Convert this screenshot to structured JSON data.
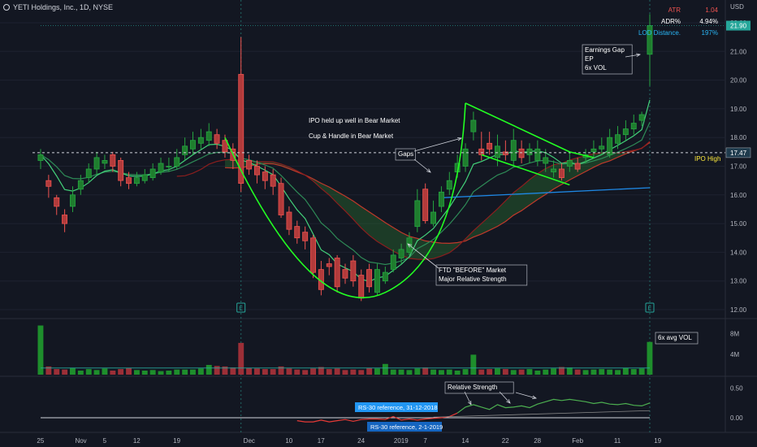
{
  "header": {
    "symbol": "YETI Holdings, Inc., 1D, NYSE"
  },
  "currency": "USD",
  "stats": [
    {
      "label": "ATR",
      "value": "1.04",
      "color": "#ef5350"
    },
    {
      "label": "ADR%",
      "value": "4.94%",
      "color": "#ffffff"
    },
    {
      "label": "LOD Distance.",
      "value": "197%",
      "color": "#29b6f6"
    }
  ],
  "colors": {
    "background": "#131722",
    "up": "#26a641",
    "down": "#ef5350",
    "upBody": "#1f7d2e",
    "downBody": "#b23b3b",
    "grid": "#1e2230",
    "text": "#b2b5be",
    "annotationBorder": "#b2b5be",
    "green": "#22ff22",
    "blue": "#29b6f6"
  },
  "chart_data": [
    {
      "type": "candlestick",
      "title": "YETI Holdings, Inc., 1D, NYSE",
      "x": [
        "Oct 25",
        "Oct 26",
        "Oct 29",
        "Oct 30",
        "Oct 31",
        "Nov 1",
        "Nov 2",
        "Nov 5",
        "Nov 6",
        "Nov 7",
        "Nov 8",
        "Nov 9",
        "Nov 12",
        "Nov 13",
        "Nov 14",
        "Nov 15",
        "Nov 16",
        "Nov 19",
        "Nov 20",
        "Nov 21",
        "Nov 23",
        "Nov 26",
        "Nov 27",
        "Nov 28",
        "Nov 29",
        "Nov 30",
        "Dec 3",
        "Dec 4",
        "Dec 6",
        "Dec 7",
        "Dec 10",
        "Dec 11",
        "Dec 12",
        "Dec 13",
        "Dec 14",
        "Dec 17",
        "Dec 18",
        "Dec 19",
        "Dec 20",
        "Dec 21",
        "Dec 24",
        "Dec 26",
        "Dec 27",
        "Dec 28",
        "Dec 31",
        "Jan 2",
        "Jan 3",
        "Jan 4",
        "Jan 7",
        "Jan 8",
        "Jan 9",
        "Jan 10",
        "Jan 11",
        "Jan 14",
        "Jan 15",
        "Jan 16",
        "Jan 17",
        "Jan 18",
        "Jan 22",
        "Jan 23",
        "Jan 24",
        "Jan 25",
        "Jan 28",
        "Jan 29",
        "Jan 30",
        "Jan 31",
        "Feb 1",
        "Feb 4",
        "Feb 5",
        "Feb 6",
        "Feb 7",
        "Feb 8",
        "Feb 11",
        "Feb 12",
        "Feb 13",
        "Feb 14",
        "Feb 15"
      ],
      "open": [
        17.2,
        16.5,
        15.9,
        15.3,
        15.6,
        16.2,
        16.6,
        16.9,
        17.1,
        17.4,
        17.2,
        16.6,
        16.4,
        16.5,
        16.6,
        16.8,
        17.0,
        17.0,
        17.4,
        17.6,
        17.8,
        17.9,
        18.1,
        17.9,
        17.6,
        20.2,
        17.2,
        17.0,
        16.8,
        16.7,
        16.4,
        15.4,
        14.9,
        14.7,
        14.5,
        13.4,
        13.6,
        13.8,
        13.4,
        13.7,
        13.2,
        13.4,
        12.6,
        13.0,
        13.4,
        13.8,
        14.0,
        14.9,
        16.2,
        15.0,
        15.6,
        16.2,
        16.8,
        17.0,
        18.2,
        17.6,
        17.8,
        17.3,
        17.5,
        17.2,
        17.6,
        17.4,
        17.2,
        17.1,
        16.8,
        16.9,
        17.0,
        17.1,
        17.3,
        17.5,
        17.6,
        17.4,
        17.8,
        18.1,
        18.3,
        18.6,
        20.9
      ],
      "close": [
        17.4,
        16.3,
        15.6,
        15.0,
        16.0,
        16.5,
        16.9,
        17.3,
        17.2,
        17.0,
        16.5,
        16.4,
        16.6,
        16.7,
        16.9,
        17.1,
        17.0,
        17.3,
        17.7,
        17.9,
        18.0,
        18.2,
        17.8,
        17.5,
        17.2,
        16.4,
        16.9,
        16.7,
        16.5,
        16.3,
        15.3,
        14.8,
        14.5,
        14.4,
        13.3,
        12.7,
        13.5,
        12.8,
        13.1,
        13.0,
        12.4,
        12.8,
        13.4,
        13.3,
        13.9,
        14.1,
        14.5,
        15.8,
        15.1,
        15.4,
        16.1,
        16.5,
        17.1,
        17.6,
        18.6,
        17.4,
        17.6,
        17.7,
        17.4,
        17.9,
        17.3,
        17.6,
        17.6,
        17.3,
        16.9,
        16.6,
        17.2,
        16.9,
        17.4,
        17.6,
        17.7,
        18.0,
        18.1,
        18.3,
        18.5,
        18.8,
        21.9
      ],
      "high": [
        17.6,
        16.7,
        16.0,
        15.5,
        16.3,
        16.7,
        17.1,
        17.5,
        17.4,
        17.5,
        17.3,
        16.8,
        16.8,
        16.9,
        17.1,
        17.3,
        17.3,
        17.6,
        18.0,
        18.2,
        18.3,
        18.5,
        18.3,
        18.1,
        17.8,
        21.5,
        17.4,
        17.2,
        17.0,
        16.9,
        16.6,
        15.6,
        15.1,
        14.9,
        14.6,
        13.7,
        13.8,
        13.9,
        13.6,
        13.9,
        13.4,
        13.6,
        13.6,
        13.5,
        14.1,
        14.3,
        14.7,
        16.2,
        16.4,
        15.8,
        16.3,
        16.8,
        17.4,
        17.8,
        18.9,
        18.2,
        18.2,
        18.1,
        17.9,
        18.3,
        17.9,
        17.8,
        17.9,
        17.6,
        17.2,
        17.1,
        17.5,
        17.3,
        17.6,
        17.9,
        18.0,
        18.3,
        18.4,
        18.6,
        18.8,
        18.9,
        22.3
      ],
      "low": [
        16.9,
        15.9,
        15.3,
        14.7,
        15.4,
        16.0,
        16.4,
        16.7,
        16.9,
        16.8,
        16.3,
        16.2,
        16.3,
        16.4,
        16.5,
        16.7,
        16.8,
        16.9,
        17.2,
        17.4,
        17.6,
        17.7,
        17.6,
        17.3,
        16.9,
        16.1,
        16.7,
        16.4,
        16.2,
        16.0,
        15.2,
        14.6,
        14.3,
        14.1,
        13.1,
        12.5,
        13.2,
        12.6,
        12.9,
        12.8,
        12.3,
        12.6,
        12.5,
        12.9,
        13.3,
        13.6,
        13.9,
        14.7,
        15.0,
        14.9,
        15.4,
        16.0,
        16.6,
        16.8,
        17.9,
        17.2,
        17.4,
        17.0,
        17.2,
        17.0,
        17.1,
        17.1,
        17.0,
        16.8,
        16.6,
        16.5,
        16.8,
        16.8,
        17.1,
        17.3,
        17.4,
        17.3,
        17.6,
        17.9,
        18.1,
        18.4,
        19.8
      ],
      "volume": [
        9.6,
        1.6,
        1.1,
        1.0,
        1.3,
        0.8,
        1.1,
        0.9,
        1.2,
        0.8,
        1.1,
        1.3,
        0.9,
        0.8,
        0.9,
        0.7,
        0.8,
        1.0,
        1.0,
        1.0,
        1.2,
        1.9,
        1.7,
        1.6,
        1.4,
        6.2,
        1.3,
        1.2,
        1.1,
        1.1,
        1.6,
        1.2,
        1.0,
        0.9,
        1.2,
        1.5,
        1.1,
        1.2,
        0.9,
        1.0,
        0.9,
        1.3,
        1.2,
        2.1,
        1.0,
        1.0,
        0.9,
        1.2,
        1.4,
        1.0,
        0.9,
        1.0,
        0.8,
        1.1,
        3.9,
        1.0,
        1.1,
        1.2,
        1.1,
        0.9,
        1.0,
        1.1,
        0.8,
        1.0,
        1.2,
        1.5,
        1.4,
        1.0,
        0.9,
        1.0,
        1.1,
        1.0,
        0.9,
        1.3,
        1.1,
        1.2,
        6.4
      ],
      "rs": [
        null,
        null,
        null,
        null,
        null,
        null,
        null,
        null,
        null,
        null,
        null,
        null,
        null,
        null,
        null,
        null,
        null,
        null,
        null,
        null,
        null,
        null,
        null,
        null,
        null,
        null,
        null,
        null,
        null,
        null,
        null,
        null,
        -0.05,
        -0.07,
        -0.07,
        -0.04,
        -0.07,
        -0.05,
        -0.03,
        -0.06,
        -0.03,
        -0.02,
        -0.02,
        -0.03,
        0.02,
        -0.04,
        -0.02,
        -0.04,
        -0.02,
        -0.01,
        0.0,
        0.02,
        0.08,
        0.18,
        0.22,
        0.18,
        0.14,
        0.22,
        0.17,
        0.18,
        0.2,
        0.17,
        0.23,
        0.27,
        0.31,
        0.29,
        0.31,
        0.29,
        0.27,
        0.24,
        0.26,
        0.23,
        0.22,
        0.24,
        0.21,
        0.2,
        0.25
      ],
      "ylim": [
        12,
        23
      ],
      "yticks": [
        "12.00",
        "13.00",
        "14.00",
        "15.00",
        "16.00",
        "17.00",
        "18.00",
        "19.00",
        "20.00",
        "21.00",
        "22.00"
      ],
      "xticks": [
        "25",
        "Nov",
        "5",
        "12",
        "19",
        "Dec",
        "10",
        "17",
        "24",
        "2019",
        "7",
        "14",
        "22",
        "28",
        "Feb",
        "11",
        "19"
      ],
      "xtickIndex": [
        0,
        5,
        8,
        12,
        17,
        26,
        31,
        35,
        40,
        45,
        48,
        53,
        58,
        62,
        67,
        72,
        77
      ],
      "lastPrice": "21.90",
      "ipoHigh": {
        "value": 17.47,
        "label": "17.47",
        "name": "IPO High"
      },
      "volume_ticks": [
        "8M",
        "4M"
      ],
      "rs_ticks": [
        "0.50",
        "0.00"
      ],
      "rs_reference_labels": [
        "RS-30 reference, 31-12-2018",
        "RS-30 reference, 2-1-2019"
      ]
    }
  ],
  "annotations": {
    "ipo_note": "IPO held up well in Bear Market",
    "cup_note": "Cup & Handle in Bear Market",
    "gaps": "Gaps",
    "ftd_line1": "FTD \"BEFORE\" Market",
    "ftd_line2": "Major Relative Strength",
    "earnings_line1": "Earnings Gap",
    "earnings_line2": "EP",
    "earnings_line3": "6x VOL",
    "avg_vol": "6x avg VOL",
    "relative_strength": "Relative Strength",
    "earnings_marker": "E"
  }
}
